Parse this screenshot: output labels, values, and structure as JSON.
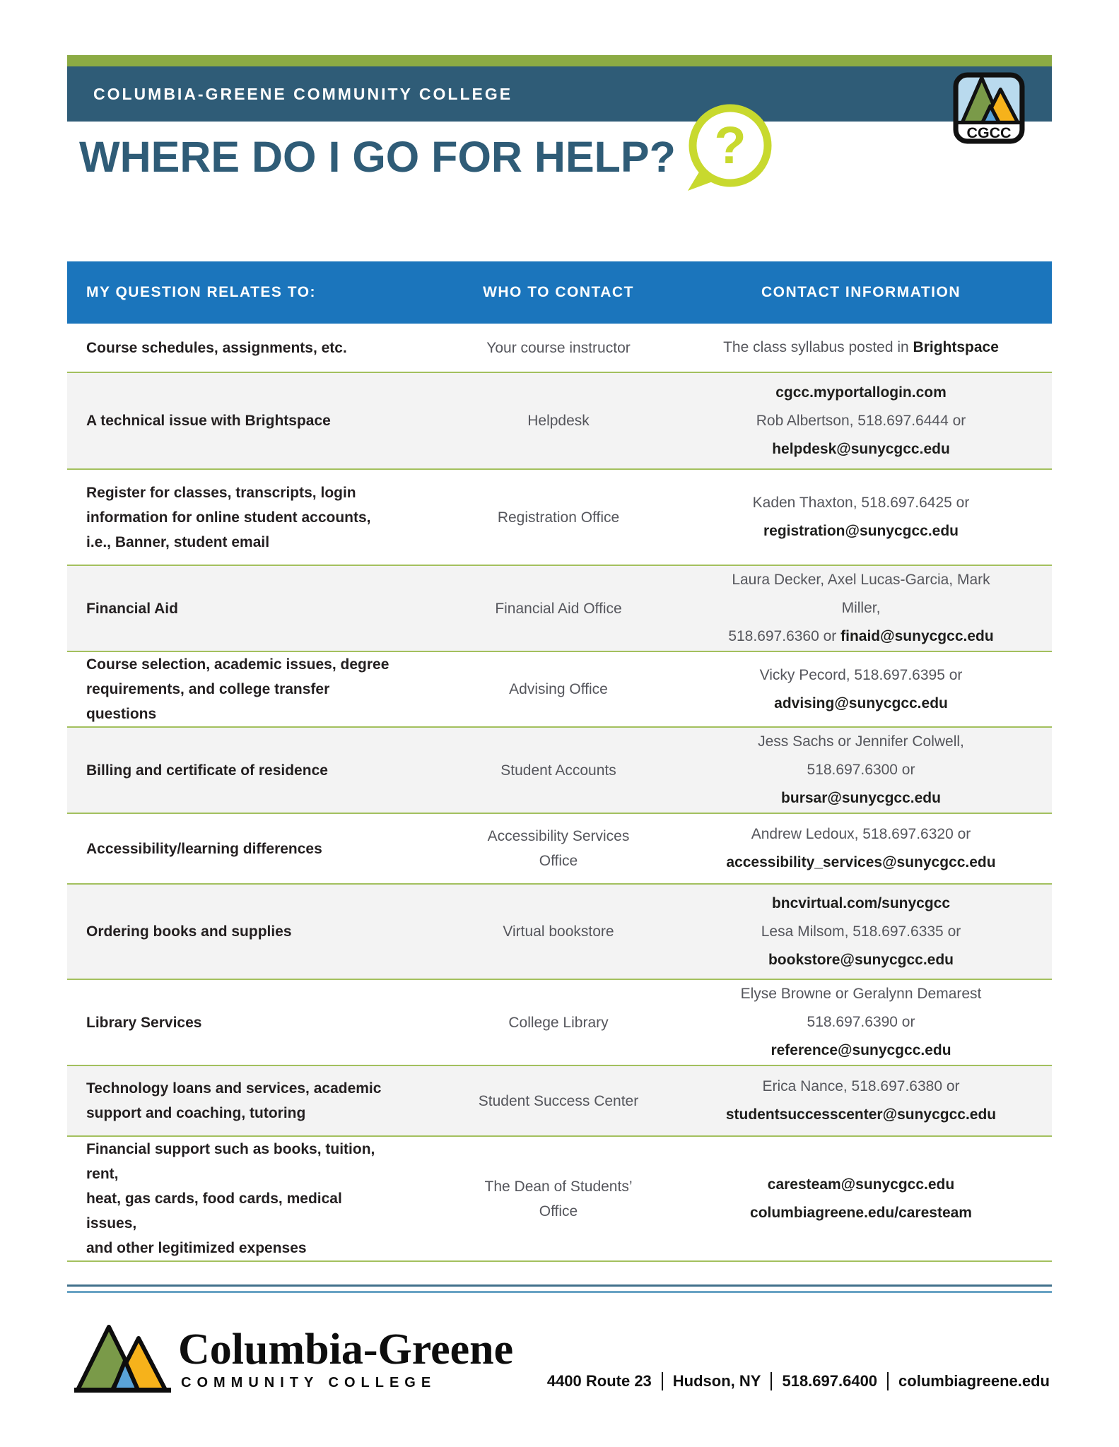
{
  "header": {
    "band_text": "COLUMBIA-GREENE COMMUNITY COLLEGE",
    "title": "WHERE DO I GO FOR HELP?",
    "badge_label": "CGCC"
  },
  "colors": {
    "teal": "#2f5c77",
    "olive_green": "#8cab44",
    "header_blue": "#1b75bc",
    "lime": "#c8d92e",
    "divider_green": "#a3c05e",
    "row_alt_gray": "#f3f3f3",
    "text_dark": "#231f20",
    "text_gray": "#55565c"
  },
  "table": {
    "headers": [
      "MY QUESTION RELATES TO:",
      "WHO TO CONTACT",
      "CONTACT INFORMATION"
    ],
    "rows": [
      {
        "question": [
          "Course schedules, assignments, etc."
        ],
        "contact": [
          "Your course instructor"
        ],
        "info": [
          [
            {
              "t": "The class syllabus posted in "
            },
            {
              "t": "Brightspace",
              "b": true
            }
          ]
        ]
      },
      {
        "question": [
          "A technical issue with Brightspace"
        ],
        "contact": [
          "Helpdesk"
        ],
        "info": [
          [
            {
              "t": "cgcc.myportallogin.com",
              "b": true,
              "link": true
            }
          ],
          [
            {
              "t": "Rob Albertson, 518.697.6444 or"
            }
          ],
          [
            {
              "t": "helpdesk@sunycgcc.edu",
              "b": true,
              "link": true
            }
          ]
        ]
      },
      {
        "question": [
          "Register for classes, transcripts, login",
          "information for online student accounts,",
          "i.e., Banner, student email"
        ],
        "contact": [
          "Registration Office"
        ],
        "info": [
          [
            {
              "t": "Kaden Thaxton, 518.697.6425 or"
            }
          ],
          [
            {
              "t": "registration@sunycgcc.edu",
              "b": true,
              "link": true
            }
          ]
        ]
      },
      {
        "question": [
          "Financial Aid"
        ],
        "contact": [
          "Financial Aid Office"
        ],
        "info": [
          [
            {
              "t": "Laura Decker, Axel Lucas-Garcia, Mark Miller,"
            }
          ],
          [
            {
              "t": "518.697.6360 or "
            },
            {
              "t": "finaid@sunycgcc.edu",
              "b": true,
              "link": true
            }
          ]
        ]
      },
      {
        "question": [
          "Course selection, academic issues, degree",
          "requirements, and college transfer questions"
        ],
        "contact": [
          "Advising Office"
        ],
        "info": [
          [
            {
              "t": "Vicky Pecord, 518.697.6395 or"
            }
          ],
          [
            {
              "t": "advising@sunycgcc.edu",
              "b": true,
              "link": true
            }
          ]
        ]
      },
      {
        "question": [
          "Billing and certificate of residence"
        ],
        "contact": [
          "Student Accounts"
        ],
        "info": [
          [
            {
              "t": "Jess Sachs or Jennifer Colwell, 518.697.6300 or"
            }
          ],
          [
            {
              "t": "bursar@sunycgcc.edu",
              "b": true,
              "link": true
            }
          ]
        ]
      },
      {
        "question": [
          "Accessibility/learning differences"
        ],
        "contact": [
          "Accessibility Services",
          "Office"
        ],
        "info": [
          [
            {
              "t": "Andrew Ledoux, 518.697.6320 or"
            }
          ],
          [
            {
              "t": "accessibility_services@sunycgcc.edu",
              "b": true,
              "link": true
            }
          ]
        ]
      },
      {
        "question": [
          "Ordering books and supplies"
        ],
        "contact": [
          "Virtual bookstore"
        ],
        "info": [
          [
            {
              "t": "bncvirtual.com/sunycgcc",
              "b": true,
              "link": true
            }
          ],
          [
            {
              "t": "Lesa Milsom, 518.697.6335 or"
            }
          ],
          [
            {
              "t": "bookstore@sunycgcc.edu",
              "b": true,
              "link": true
            }
          ]
        ]
      },
      {
        "question": [
          "Library Services"
        ],
        "contact": [
          "College Library"
        ],
        "info": [
          [
            {
              "t": "Elyse Browne or Geralynn Demarest"
            }
          ],
          [
            {
              "t": "518.697.6390 or "
            },
            {
              "t": "reference@sunycgcc.edu",
              "b": true,
              "link": true
            }
          ]
        ]
      },
      {
        "question": [
          "Technology loans and services, academic",
          "support and coaching, tutoring"
        ],
        "contact": [
          "Student Success Center"
        ],
        "info": [
          [
            {
              "t": "Erica Nance, 518.697.6380 or"
            }
          ],
          [
            {
              "t": "studentsuccesscenter@sunycgcc.edu",
              "b": true,
              "link": true
            }
          ]
        ]
      },
      {
        "question": [
          "Financial support such as books, tuition, rent,",
          "heat, gas cards, food cards, medical issues,",
          "and other legitimized expenses"
        ],
        "contact": [
          "The Dean of Students’",
          "Office"
        ],
        "info": [
          [
            {
              "t": "caresteam@sunycgcc.edu",
              "b": true,
              "link": true
            }
          ],
          [
            {
              "t": "columbiagreene.edu/caresteam",
              "b": true,
              "link": true
            }
          ]
        ]
      }
    ]
  },
  "footer": {
    "wordmark": "Columbia-Greene",
    "wordmark_subtitle": "COMMUNITY COLLEGE",
    "address_parts": [
      "4400 Route 23",
      "Hudson, NY",
      "518.697.6400",
      "columbiagreene.edu"
    ]
  }
}
